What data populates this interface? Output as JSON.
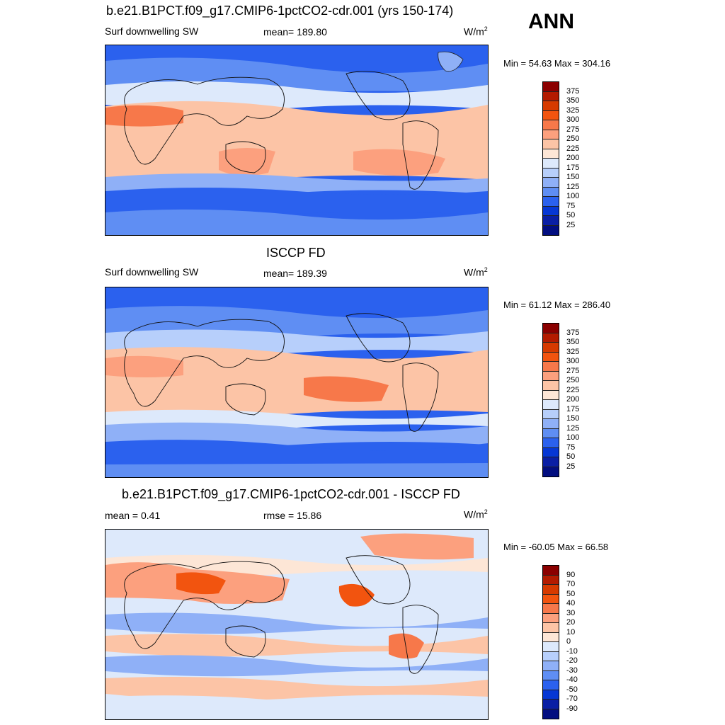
{
  "season": "ANN",
  "panels": [
    {
      "title": "b.e21.B1PCT.f09_g17.CMIP6-1pctCO2-cdr.001 (yrs 150-174)",
      "left_label": "Surf downwelling SW",
      "center_label": "mean= 189.80",
      "units_base": "W/m",
      "units_exp": "2",
      "minmax": "Min =  54.63 Max = 304.16",
      "colorbar": {
        "levels": [
          "375",
          "350",
          "325",
          "300",
          "275",
          "250",
          "225",
          "200",
          "175",
          "150",
          "125",
          "100",
          "75",
          "50",
          "25"
        ],
        "colors": [
          "#8b0000",
          "#b31b00",
          "#d63a00",
          "#f2540f",
          "#f7784a",
          "#fca07e",
          "#fcc4a6",
          "#fde6d6",
          "#dde9fb",
          "#b7cffb",
          "#8fb0f7",
          "#5f8ef3",
          "#2b61ee",
          "#0637d4",
          "#0a1fa4",
          "#020e80"
        ]
      }
    },
    {
      "title": "ISCCP FD",
      "left_label": "Surf downwelling SW",
      "center_label": "mean= 189.39",
      "units_base": "W/m",
      "units_exp": "2",
      "minmax": "Min =  61.12 Max = 286.40",
      "colorbar": {
        "levels": [
          "375",
          "350",
          "325",
          "300",
          "275",
          "250",
          "225",
          "200",
          "175",
          "150",
          "125",
          "100",
          "75",
          "50",
          "25"
        ],
        "colors": [
          "#8b0000",
          "#b31b00",
          "#d63a00",
          "#f2540f",
          "#f7784a",
          "#fca07e",
          "#fcc4a6",
          "#fde6d6",
          "#dde9fb",
          "#b7cffb",
          "#8fb0f7",
          "#5f8ef3",
          "#2b61ee",
          "#0637d4",
          "#0a1fa4",
          "#020e80"
        ]
      }
    },
    {
      "title": "b.e21.B1PCT.f09_g17.CMIP6-1pctCO2-cdr.001 - ISCCP FD",
      "left_label": "mean =   0.41",
      "center_label": "rmse =  15.86",
      "units_base": "W/m",
      "units_exp": "2",
      "minmax": "Min = -60.05 Max =  66.58",
      "colorbar": {
        "levels": [
          "90",
          "70",
          "50",
          "40",
          "30",
          "20",
          "10",
          "0",
          "-10",
          "-20",
          "-30",
          "-40",
          "-50",
          "-70",
          "-90"
        ],
        "colors": [
          "#8b0000",
          "#b31b00",
          "#d63a00",
          "#f2540f",
          "#f7784a",
          "#fca07e",
          "#fcc4a6",
          "#fde6d6",
          "#dde9fb",
          "#b7cffb",
          "#8fb0f7",
          "#5f8ef3",
          "#2b61ee",
          "#0637d4",
          "#0a1fa4",
          "#020e80"
        ]
      }
    }
  ]
}
